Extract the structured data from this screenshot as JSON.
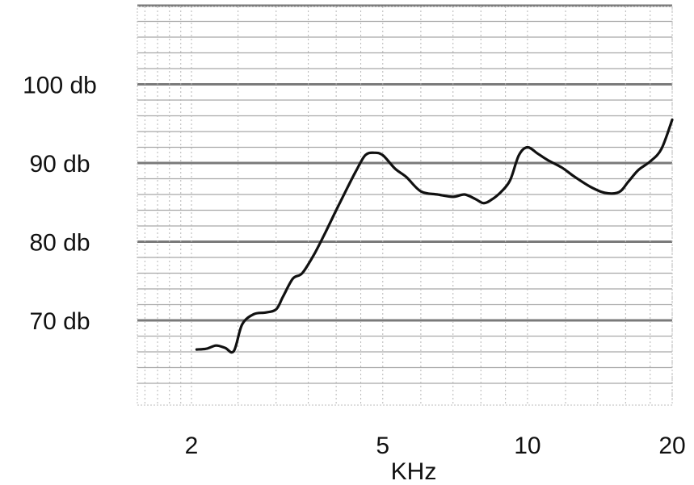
{
  "chart_data": {
    "type": "line",
    "title": "",
    "xlabel": "KHz",
    "ylabel": "",
    "x_scale": "log",
    "xlim": [
      1.5,
      20
    ],
    "ylim": [
      62,
      110
    ],
    "grid": true,
    "x_ticks": [
      {
        "value": 2,
        "label": "2"
      },
      {
        "value": 5,
        "label": "5"
      },
      {
        "value": 10,
        "label": "10"
      },
      {
        "value": 20,
        "label": "20"
      }
    ],
    "y_ticks": [
      {
        "value": 70,
        "label": "70 db"
      },
      {
        "value": 80,
        "label": "80 db"
      },
      {
        "value": 90,
        "label": "90 db"
      },
      {
        "value": 100,
        "label": "100 db"
      }
    ],
    "series": [
      {
        "x": [
          2.05,
          2.15,
          2.25,
          2.35,
          2.45,
          2.55,
          2.7,
          2.85,
          3.0,
          3.1,
          3.25,
          3.4,
          3.6,
          3.8,
          4.0,
          4.2,
          4.4,
          4.6,
          4.8,
          5.0,
          5.3,
          5.6,
          6.0,
          6.5,
          7.0,
          7.4,
          7.8,
          8.1,
          8.4,
          8.8,
          9.2,
          9.6,
          10.0,
          10.5,
          11.0,
          11.8,
          12.5,
          13.5,
          14.5,
          15.5,
          16.2,
          17.0,
          18.0,
          19.0,
          20.0
        ],
        "y": [
          66.3,
          66.4,
          66.8,
          66.5,
          66.1,
          69.5,
          70.8,
          71.0,
          71.4,
          73.0,
          75.3,
          76.0,
          78.4,
          81.2,
          84.0,
          86.6,
          89.0,
          91.0,
          91.3,
          91.0,
          89.3,
          88.2,
          86.4,
          86.0,
          85.7,
          86.0,
          85.4,
          84.9,
          85.3,
          86.3,
          87.8,
          91.0,
          92.0,
          91.2,
          90.4,
          89.4,
          88.3,
          87.0,
          86.2,
          86.3,
          87.6,
          89.1,
          90.2,
          91.8,
          95.5
        ]
      }
    ]
  }
}
